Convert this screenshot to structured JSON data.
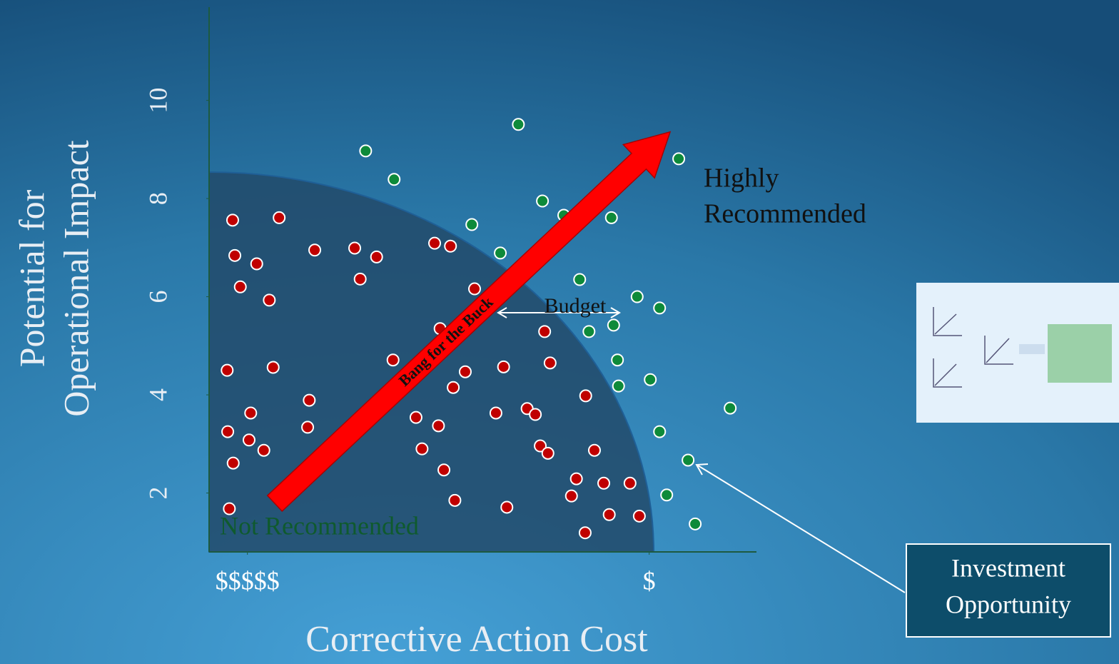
{
  "chart_data": {
    "type": "scatter",
    "ylabel": [
      "Potential for",
      "Operational Impact"
    ],
    "xlabel": "Corrective Action Cost",
    "xlim": [
      0,
      10
    ],
    "xticks": [
      {
        "value": 0.7,
        "label": "$$$$$"
      },
      {
        "value": 8.04,
        "label": "$"
      }
    ],
    "ylim": [
      0.8,
      11.9
    ],
    "yticks": [
      2,
      4,
      6,
      8,
      10
    ],
    "annotations": {
      "highly": [
        "Highly",
        "Recommended"
      ],
      "not": "Not Recommended",
      "budget": "Budget",
      "arrow": "Bang for the Buck",
      "box": [
        "Investment",
        "Opportunity"
      ]
    },
    "series": [
      {
        "color": "#c00000",
        "x": [
          0.43,
          1.28,
          0.47,
          0.87,
          1.93,
          2.66,
          3.06,
          4.12,
          4.41,
          0.57,
          2.76,
          1.1,
          4.85,
          4.22,
          6.13,
          3.36,
          1.17,
          0.33,
          4.68,
          5.38,
          6.23,
          4.46,
          1.83,
          6.88,
          0.76,
          5.24,
          5.81,
          5.96,
          3.78,
          4.19,
          1.8,
          0.34,
          0.73,
          1.0,
          3.89,
          6.05,
          6.19,
          7.04,
          0.44,
          4.29,
          6.71,
          7.21,
          7.69,
          4.49,
          6.62,
          0.37,
          5.44,
          7.31,
          7.86,
          6.87
        ],
        "values": [
          7.56,
          7.61,
          6.84,
          6.67,
          6.95,
          6.99,
          6.81,
          7.09,
          7.03,
          6.2,
          6.36,
          5.93,
          6.16,
          5.35,
          5.29,
          4.71,
          4.56,
          4.5,
          4.47,
          4.57,
          4.65,
          4.15,
          3.89,
          3.98,
          3.63,
          3.63,
          3.72,
          3.6,
          3.54,
          3.37,
          3.34,
          3.25,
          3.08,
          2.87,
          2.9,
          2.96,
          2.81,
          2.87,
          2.61,
          2.47,
          2.29,
          2.2,
          2.2,
          1.85,
          1.94,
          1.68,
          1.71,
          1.56,
          1.53,
          1.19
        ]
      },
      {
        "color": "#0e8a3a",
        "x": [
          5.65,
          2.86,
          8.58,
          3.38,
          6.09,
          6.48,
          7.35,
          4.8,
          5.32,
          6.77,
          7.82,
          8.23,
          7.39,
          6.94,
          7.46,
          8.06,
          7.48,
          9.52,
          8.23,
          8.75,
          8.36,
          8.88
        ],
        "values": [
          9.51,
          8.97,
          8.81,
          8.39,
          7.95,
          7.66,
          7.61,
          7.47,
          6.89,
          6.35,
          6.0,
          5.77,
          5.42,
          5.29,
          4.71,
          4.31,
          4.18,
          3.73,
          3.25,
          2.67,
          1.96,
          1.37
        ]
      }
    ]
  }
}
